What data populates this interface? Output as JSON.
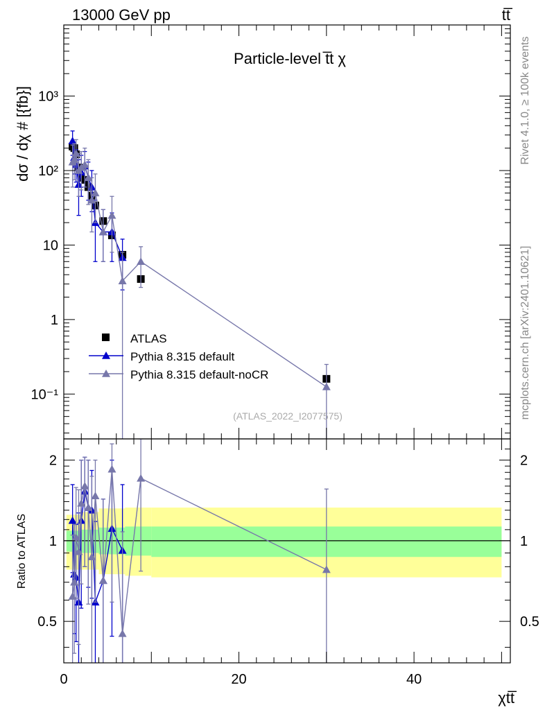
{
  "header": {
    "left": "13000 GeV pp",
    "right": "tt̅"
  },
  "side_labels": {
    "rivet": "Rivet 4.1.0, ≥ 100k events",
    "mcplots": "mcplots.cern.ch [arXiv:2401.10621]"
  },
  "chart_data": [
    {
      "type": "scatter",
      "panel": "main",
      "title": "Particle-level t̅t χ",
      "ylabel": "dσ / dχ # [{fb}]",
      "yscale": "log",
      "ylim": [
        0.025,
        9000
      ],
      "xlim": [
        0,
        51
      ],
      "yticks": [
        {
          "v": 0.1,
          "label": "10⁻¹"
        },
        {
          "v": 1,
          "label": "1"
        },
        {
          "v": 10,
          "label": "10"
        },
        {
          "v": 100,
          "label": "10²"
        },
        {
          "v": 1000,
          "label": "10³"
        }
      ],
      "watermark": "(ATLAS_2022_I2077575)",
      "legend_position": "lower-left",
      "series": [
        {
          "name": "ATLAS",
          "style": "square",
          "color": "#000000",
          "points": [
            {
              "x": 1.0,
              "y": 210
            },
            {
              "x": 1.2,
              "y": 200
            },
            {
              "x": 1.4,
              "y": 165
            },
            {
              "x": 1.7,
              "y": 110
            },
            {
              "x": 2.0,
              "y": 80
            },
            {
              "x": 2.4,
              "y": 75
            },
            {
              "x": 2.8,
              "y": 60
            },
            {
              "x": 3.2,
              "y": 46
            },
            {
              "x": 3.6,
              "y": 34
            },
            {
              "x": 4.5,
              "y": 21
            },
            {
              "x": 5.5,
              "y": 13.5
            },
            {
              "x": 6.7,
              "y": 7.4
            },
            {
              "x": 8.8,
              "y": 3.5
            },
            {
              "x": 30,
              "y": 0.16
            }
          ]
        },
        {
          "name": "Pythia 8.315 default",
          "style": "triangle",
          "color": "#0000cc",
          "points": [
            {
              "x": 1.0,
              "y": 250,
              "lo": 160,
              "hi": 340
            },
            {
              "x": 1.2,
              "y": 150,
              "lo": 90,
              "hi": 230
            },
            {
              "x": 1.4,
              "y": 120,
              "lo": 70,
              "hi": 190
            },
            {
              "x": 1.7,
              "y": 65,
              "lo": 25,
              "hi": 140
            },
            {
              "x": 2.0,
              "y": 95,
              "lo": 45,
              "hi": 160
            },
            {
              "x": 2.4,
              "y": 115,
              "lo": 60,
              "hi": 180
            },
            {
              "x": 2.8,
              "y": 80,
              "lo": 40,
              "hi": 130
            },
            {
              "x": 3.2,
              "y": 60,
              "lo": 28,
              "hi": 100
            },
            {
              "x": 3.6,
              "y": 20,
              "lo": 6,
              "hi": 40
            },
            {
              "x": 4.5,
              "y": 15,
              "lo": 6,
              "hi": 30
            },
            {
              "x": 5.5,
              "y": 15,
              "lo": 6,
              "hi": 27
            },
            {
              "x": 6.7,
              "y": 6.8,
              "lo": 2.5,
              "hi": 12
            }
          ]
        },
        {
          "name": "Pythia 8.315 default-noCR",
          "style": "triangle",
          "color": "#7777aa",
          "points": [
            {
              "x": 1.0,
              "y": 130,
              "lo": 60,
              "hi": 220
            },
            {
              "x": 1.2,
              "y": 140,
              "lo": 75,
              "hi": 230
            },
            {
              "x": 1.4,
              "y": 170,
              "lo": 100,
              "hi": 260
            },
            {
              "x": 1.7,
              "y": 100,
              "lo": 45,
              "hi": 170
            },
            {
              "x": 2.0,
              "y": 110,
              "lo": 55,
              "hi": 180
            },
            {
              "x": 2.4,
              "y": 120,
              "lo": 60,
              "hi": 200
            },
            {
              "x": 2.8,
              "y": 80,
              "lo": 35,
              "hi": 140
            },
            {
              "x": 3.2,
              "y": 40,
              "lo": 15,
              "hi": 80
            },
            {
              "x": 3.6,
              "y": 50,
              "lo": 20,
              "hi": 90
            },
            {
              "x": 4.5,
              "y": 15,
              "lo": 6,
              "hi": 30
            },
            {
              "x": 5.5,
              "y": 25,
              "lo": 8,
              "hi": 45
            },
            {
              "x": 6.7,
              "y": 3.3,
              "lo": 0.01,
              "hi": 8
            },
            {
              "x": 8.8,
              "y": 6.0,
              "lo": 2.7,
              "hi": 9.5
            },
            {
              "x": 30,
              "y": 0.125,
              "lo": 0.01,
              "hi": 0.25
            }
          ]
        }
      ]
    },
    {
      "type": "scatter",
      "panel": "ratio",
      "ylabel": "Ratio to ATLAS",
      "xlabel": "χtt̅",
      "yscale": "log",
      "ylim": [
        0.35,
        2.4
      ],
      "xlim": [
        0,
        51
      ],
      "yticks": [
        {
          "v": 0.5,
          "label": "0.5"
        },
        {
          "v": 1,
          "label": "1"
        },
        {
          "v": 2,
          "label": "2"
        }
      ],
      "xticks": [
        {
          "v": 0,
          "label": "0"
        },
        {
          "v": 20,
          "label": "20"
        },
        {
          "v": 40,
          "label": "40"
        }
      ],
      "bands": [
        {
          "name": "total uncertainty",
          "color": "#ffff99",
          "steps": [
            {
              "x0": 0.3,
              "x1": 2.0,
              "lo": 0.78,
              "hi": 1.25
            },
            {
              "x0": 2.0,
              "x1": 4.0,
              "lo": 0.78,
              "hi": 1.28
            },
            {
              "x0": 4.0,
              "x1": 7.0,
              "lo": 0.75,
              "hi": 1.32
            },
            {
              "x0": 7.0,
              "x1": 10.0,
              "lo": 0.74,
              "hi": 1.33
            },
            {
              "x0": 10.0,
              "x1": 50.0,
              "lo": 0.73,
              "hi": 1.33
            }
          ]
        },
        {
          "name": "statistical uncertainty",
          "color": "#99ff99",
          "steps": [
            {
              "x0": 0.3,
              "x1": 2.0,
              "lo": 0.91,
              "hi": 1.09
            },
            {
              "x0": 2.0,
              "x1": 4.0,
              "lo": 0.9,
              "hi": 1.1
            },
            {
              "x0": 4.0,
              "x1": 7.0,
              "lo": 0.89,
              "hi": 1.12
            },
            {
              "x0": 7.0,
              "x1": 10.0,
              "lo": 0.88,
              "hi": 1.13
            },
            {
              "x0": 10.0,
              "x1": 50.0,
              "lo": 0.87,
              "hi": 1.13
            }
          ]
        }
      ],
      "series": [
        {
          "name": "Pythia 8.315 default",
          "color": "#0000cc",
          "points": [
            {
              "x": 1.0,
              "y": 1.19,
              "lo": 0.76,
              "hi": 1.62
            },
            {
              "x": 1.2,
              "y": 0.75,
              "lo": 0.45,
              "hi": 1.15
            },
            {
              "x": 1.4,
              "y": 0.73,
              "lo": 0.42,
              "hi": 1.15
            },
            {
              "x": 1.7,
              "y": 0.59,
              "lo": 0.23,
              "hi": 1.27
            },
            {
              "x": 2.0,
              "y": 1.19,
              "lo": 0.56,
              "hi": 2.0
            },
            {
              "x": 2.4,
              "y": 1.53,
              "lo": 0.8,
              "hi": 2.05
            },
            {
              "x": 2.8,
              "y": 1.33,
              "lo": 0.67,
              "hi": 2.0
            },
            {
              "x": 3.2,
              "y": 1.3,
              "lo": 0.61,
              "hi": 1.83
            },
            {
              "x": 3.6,
              "y": 0.59,
              "lo": 0.18,
              "hi": 1.18
            },
            {
              "x": 4.5,
              "y": 0.71,
              "lo": 0.29,
              "hi": 1.43
            },
            {
              "x": 5.5,
              "y": 1.11,
              "lo": 0.44,
              "hi": 2.0
            },
            {
              "x": 6.7,
              "y": 0.92,
              "lo": 0.34,
              "hi": 1.62
            }
          ]
        },
        {
          "name": "Pythia 8.315 default-noCR",
          "color": "#7777aa",
          "points": [
            {
              "x": 1.0,
              "y": 0.62,
              "lo": 0.29,
              "hi": 1.05
            },
            {
              "x": 1.2,
              "y": 0.7,
              "lo": 0.38,
              "hi": 1.15
            },
            {
              "x": 1.4,
              "y": 1.03,
              "lo": 0.61,
              "hi": 1.58
            },
            {
              "x": 1.7,
              "y": 0.91,
              "lo": 0.41,
              "hi": 1.55
            },
            {
              "x": 2.0,
              "y": 1.38,
              "lo": 0.69,
              "hi": 2.0
            },
            {
              "x": 2.4,
              "y": 1.6,
              "lo": 0.8,
              "hi": 2.05
            },
            {
              "x": 2.8,
              "y": 1.33,
              "lo": 0.58,
              "hi": 2.0
            },
            {
              "x": 3.2,
              "y": 0.87,
              "lo": 0.33,
              "hi": 1.74
            },
            {
              "x": 3.6,
              "y": 1.47,
              "lo": 0.59,
              "hi": 2.0
            },
            {
              "x": 4.5,
              "y": 0.71,
              "lo": 0.29,
              "hi": 1.43
            },
            {
              "x": 5.5,
              "y": 1.85,
              "lo": 0.59,
              "hi": 2.3
            },
            {
              "x": 6.7,
              "y": 0.45,
              "lo": 0.3,
              "hi": 1.08
            },
            {
              "x": 8.8,
              "y": 1.71,
              "lo": 0.77,
              "hi": 2.4
            },
            {
              "x": 30,
              "y": 0.78,
              "lo": 0.3,
              "hi": 1.56
            }
          ]
        }
      ]
    }
  ]
}
